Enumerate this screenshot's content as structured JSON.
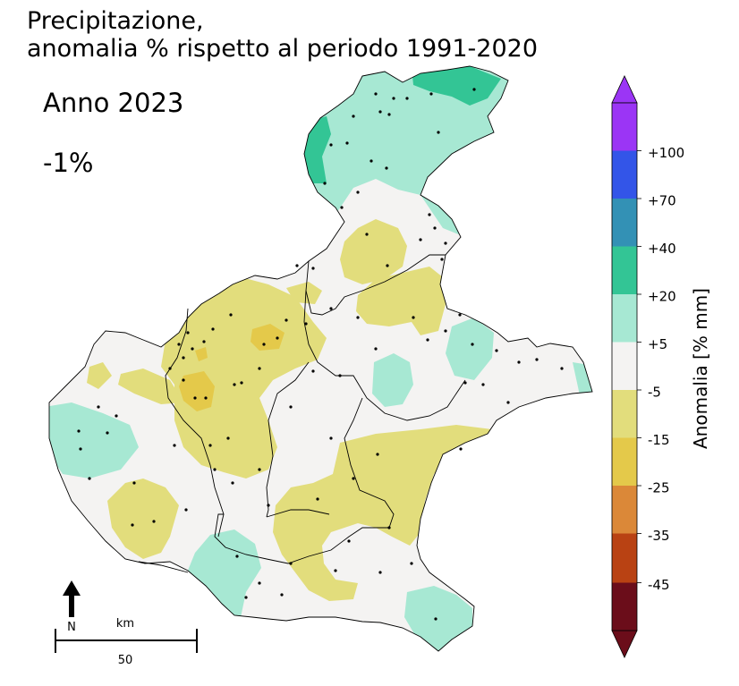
{
  "title": {
    "line1": "Precipitazione,",
    "line2": "anomalia % rispetto al periodo 1991-2020"
  },
  "period_label": "Anno 2023",
  "regional_anomaly": "-1%",
  "colorbar": {
    "title": "Anomalia [% mm]",
    "tick_labels": [
      "+100",
      "+70",
      "+40",
      "+20",
      "+5",
      "-5",
      "-15",
      "-25",
      "-35",
      "-45"
    ],
    "classes": [
      {
        "range": "> +100",
        "color": "#9b35f5"
      },
      {
        "range": "+70 .. +100",
        "color": "#3355e8"
      },
      {
        "range": "+40 .. +70",
        "color": "#3391b5"
      },
      {
        "range": "+20 .. +40",
        "color": "#33c595"
      },
      {
        "range": "+5 .. +20",
        "color": "#a7e8d3"
      },
      {
        "range": "-5 .. +5",
        "color": "#f4f3f2"
      },
      {
        "range": "-15 .. -5",
        "color": "#e2dd7c"
      },
      {
        "range": "-25 .. -15",
        "color": "#e4c94a"
      },
      {
        "range": "-35 .. -25",
        "color": "#db8838"
      },
      {
        "range": "-45 .. -35",
        "color": "#b94213"
      },
      {
        "range": "< -45",
        "color": "#6b0d1a"
      }
    ]
  },
  "north_arrow": {
    "label": "N",
    "icon": "north-arrow-icon"
  },
  "scale_bar": {
    "unit": "km",
    "value": "50"
  }
}
